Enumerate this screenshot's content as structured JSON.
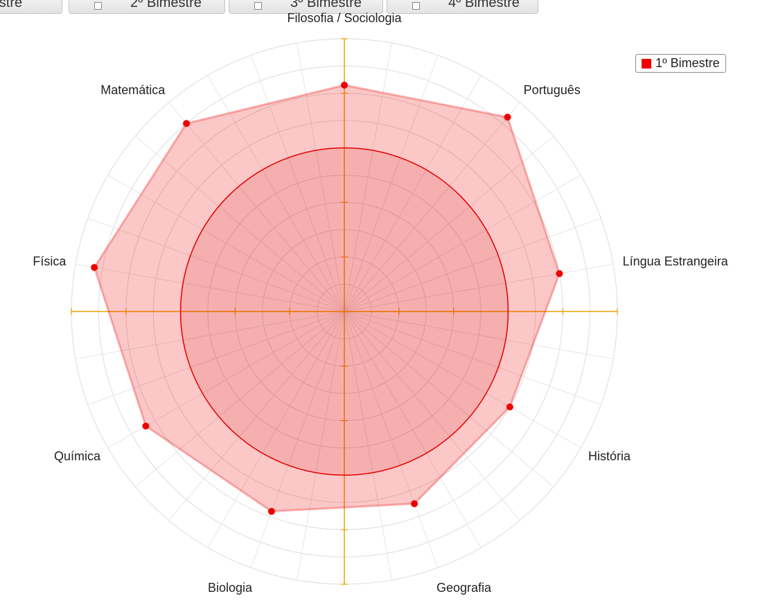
{
  "tabs": [
    {
      "label": "mestre",
      "checkbox": false
    },
    {
      "label": "2º Bimestre",
      "checkbox": true
    },
    {
      "label": "3º Bimestre",
      "checkbox": true
    },
    {
      "label": "4º Bimestre",
      "checkbox": true
    }
  ],
  "legend": {
    "label": "1º Bimestre",
    "color": "#ee0000"
  },
  "chart_data": {
    "type": "radar",
    "categories": [
      "Filosofia / Sociologia",
      "Português",
      "Língua Estrangeira",
      "História",
      "Geografia",
      "Biologia",
      "Química",
      "Física",
      "Matemática"
    ],
    "series": [
      {
        "name": "1º Bimestre",
        "values": [
          8.3,
          9.3,
          8.0,
          7.0,
          7.5,
          7.8,
          8.4,
          9.3,
          9.0
        ],
        "color": "#ee0000"
      }
    ],
    "reference_circle_value": 6,
    "rlim": [
      0,
      10
    ],
    "ticks": [
      1,
      2,
      3,
      4,
      5,
      6,
      7,
      8,
      9,
      10
    ],
    "axis_color": "#f0a000",
    "grid": true,
    "legend_position": "top-right"
  }
}
